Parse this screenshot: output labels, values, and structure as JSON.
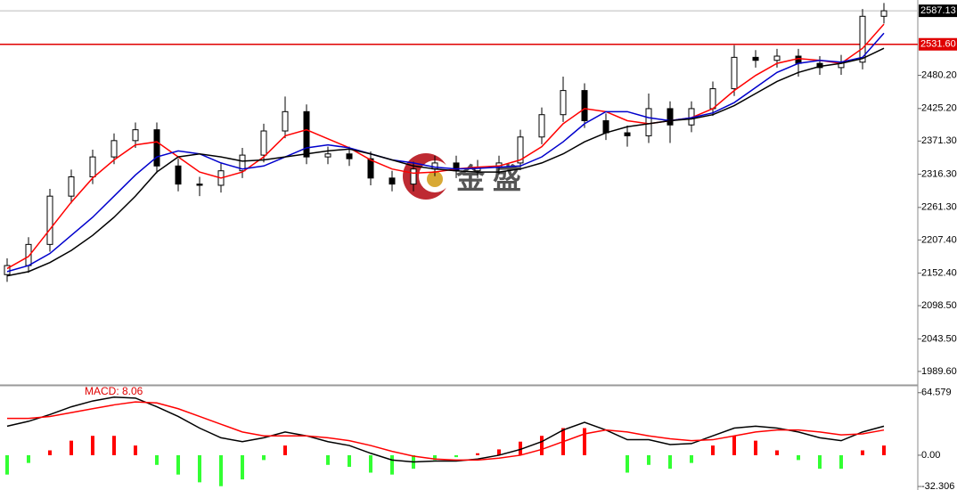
{
  "chart_data": [
    {
      "type": "candlestick",
      "open": [
        2150,
        2165,
        2200,
        2280,
        2312,
        2345,
        2372,
        2390,
        2330,
        2300,
        2298,
        2322,
        2348,
        2388,
        2420,
        2345,
        2350,
        2342,
        2310,
        2300,
        2325,
        2335,
        2322,
        2328,
        2335,
        2378,
        2415,
        2455,
        2405,
        2385,
        2380,
        2425,
        2398,
        2425,
        2458,
        2510,
        2505,
        2512,
        2500,
        2493,
        2502,
        2578
      ],
      "high": [
        2177,
        2212,
        2292,
        2324,
        2357,
        2384,
        2402,
        2402,
        2342,
        2312,
        2334,
        2360,
        2400,
        2445,
        2432,
        2362,
        2362,
        2354,
        2322,
        2337,
        2347,
        2347,
        2340,
        2347,
        2390,
        2427,
        2478,
        2467,
        2417,
        2397,
        2450,
        2437,
        2437,
        2470,
        2530,
        2522,
        2524,
        2524,
        2512,
        2514,
        2590,
        2600
      ],
      "low": [
        2138,
        2153,
        2188,
        2268,
        2300,
        2333,
        2360,
        2318,
        2288,
        2280,
        2286,
        2310,
        2336,
        2376,
        2333,
        2333,
        2330,
        2298,
        2288,
        2288,
        2313,
        2310,
        2310,
        2316,
        2323,
        2366,
        2403,
        2393,
        2373,
        2362,
        2368,
        2368,
        2386,
        2413,
        2446,
        2493,
        2493,
        2478,
        2481,
        2481,
        2490,
        2566
      ],
      "close": [
        2165,
        2200,
        2280,
        2312,
        2345,
        2372,
        2390,
        2330,
        2300,
        2298,
        2322,
        2348,
        2388,
        2420,
        2345,
        2350,
        2342,
        2310,
        2300,
        2325,
        2335,
        2322,
        2328,
        2335,
        2378,
        2415,
        2455,
        2405,
        2385,
        2380,
        2425,
        2398,
        2425,
        2458,
        2510,
        2505,
        2512,
        2500,
        2493,
        2502,
        2578,
        2587.13
      ],
      "series": [
        {
          "color": "#ff0000",
          "values": [
            2160,
            2180,
            2225,
            2270,
            2310,
            2340,
            2365,
            2370,
            2345,
            2320,
            2310,
            2320,
            2345,
            2380,
            2390,
            2375,
            2360,
            2340,
            2325,
            2318,
            2320,
            2325,
            2328,
            2330,
            2340,
            2362,
            2400,
            2425,
            2420,
            2405,
            2400,
            2405,
            2410,
            2425,
            2455,
            2480,
            2500,
            2508,
            2505,
            2500,
            2525,
            2565
          ]
        },
        {
          "color": "#0000cc",
          "values": [
            2155,
            2165,
            2185,
            2215,
            2245,
            2280,
            2315,
            2345,
            2355,
            2350,
            2335,
            2325,
            2330,
            2345,
            2360,
            2365,
            2360,
            2350,
            2340,
            2335,
            2328,
            2325,
            2326,
            2328,
            2330,
            2345,
            2370,
            2400,
            2420,
            2420,
            2410,
            2405,
            2410,
            2418,
            2435,
            2460,
            2485,
            2500,
            2505,
            2502,
            2510,
            2550
          ]
        },
        {
          "color": "#000000",
          "values": [
            2148,
            2155,
            2170,
            2190,
            2215,
            2245,
            2280,
            2320,
            2345,
            2350,
            2345,
            2338,
            2340,
            2345,
            2350,
            2355,
            2358,
            2350,
            2340,
            2330,
            2325,
            2322,
            2320,
            2320,
            2325,
            2335,
            2350,
            2370,
            2385,
            2395,
            2400,
            2405,
            2408,
            2415,
            2430,
            2450,
            2470,
            2485,
            2495,
            2500,
            2508,
            2525
          ]
        }
      ],
      "ylim": [
        1967.3,
        2605
      ],
      "yticks": [
        {
          "value": 2480.2,
          "label": "2480.20"
        },
        {
          "value": 2425.2,
          "label": "2425.20"
        },
        {
          "value": 2371.3,
          "label": "2371.30"
        },
        {
          "value": 2316.3,
          "label": "2316.30"
        },
        {
          "value": 2261.3,
          "label": "2261.30"
        },
        {
          "value": 2207.4,
          "label": "2207.40"
        },
        {
          "value": 2152.4,
          "label": "2152.40"
        },
        {
          "value": 2098.5,
          "label": "2098.50"
        },
        {
          "value": 2043.5,
          "label": "2043.50"
        },
        {
          "value": 1989.6,
          "label": "1989.60"
        }
      ],
      "current_price": {
        "value": 2587.13,
        "label": "2587.13"
      },
      "hline": {
        "value": 2531.6,
        "label": "2531.60",
        "color": "#e00000"
      },
      "watermark": "金 盛"
    },
    {
      "type": "macd",
      "label": "MACD: 8.06",
      "histogram": [
        -20,
        -8,
        5,
        15,
        20,
        20,
        10,
        -10,
        -20,
        -28,
        -32,
        -25,
        -5,
        10,
        0,
        -10,
        -12,
        -18,
        -20,
        -14,
        -5,
        -2,
        2,
        6,
        14,
        20,
        28,
        28,
        0,
        -18,
        -10,
        -14,
        -8,
        10,
        20,
        15,
        5,
        -5,
        -14,
        -14,
        5,
        10
      ],
      "up_color": "#ff0000",
      "down_color": "#33ff33",
      "series": [
        {
          "color": "#000000",
          "values": [
            30,
            35,
            42,
            50,
            56,
            60,
            59,
            50,
            40,
            28,
            18,
            14,
            18,
            24,
            20,
            14,
            10,
            2,
            -5,
            -7,
            -6,
            -6,
            -4,
            0,
            6,
            14,
            26,
            34,
            26,
            16,
            16,
            11,
            12,
            20,
            28,
            30,
            28,
            24,
            18,
            15,
            24,
            30
          ]
        },
        {
          "color": "#ff0000",
          "values": [
            38,
            38,
            40,
            44,
            48,
            52,
            55,
            54,
            48,
            40,
            32,
            24,
            20,
            20,
            20,
            18,
            15,
            10,
            4,
            -1,
            -4,
            -5,
            -5,
            -3,
            0,
            6,
            14,
            22,
            26,
            24,
            20,
            17,
            15,
            16,
            20,
            24,
            26,
            26,
            24,
            21,
            22,
            26
          ]
        }
      ],
      "ylim": [
        -34.1,
        70.8
      ],
      "yticks": [
        64.579,
        {
          "value": 0,
          "label": "0.00"
        },
        -32.306
      ]
    }
  ]
}
